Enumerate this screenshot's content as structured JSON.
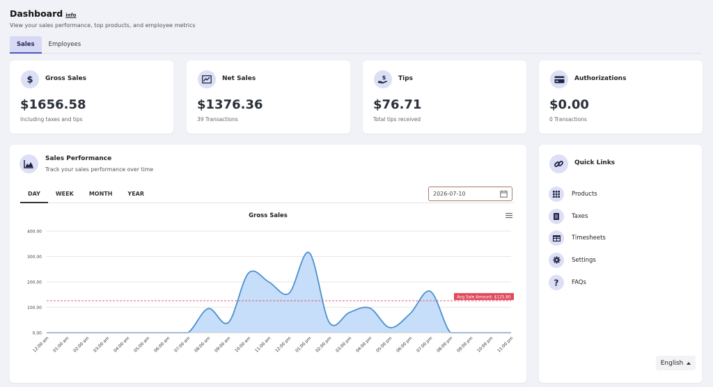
{
  "header": {
    "title": "Dashboard",
    "info": "info",
    "subtitle": "View your sales performance, top products, and employee metrics"
  },
  "tabs": [
    {
      "label": "Sales",
      "active": true
    },
    {
      "label": "Employees",
      "active": false
    }
  ],
  "stats": [
    {
      "icon": "dollar-icon",
      "label": "Gross Sales",
      "value": "$1656.58",
      "sub": "Including taxes and tips"
    },
    {
      "icon": "trending-up-icon",
      "label": "Net Sales",
      "value": "$1376.36",
      "sub": "39 Transactions"
    },
    {
      "icon": "hand-dollar-icon",
      "label": "Tips",
      "value": "$76.71",
      "sub": "Total tips received"
    },
    {
      "icon": "credit-card-icon",
      "label": "Authorizations",
      "value": "$0.00",
      "sub": "0 Transactions"
    }
  ],
  "performance": {
    "title": "Sales Performance",
    "subtitle": "Track your sales performance over time",
    "periods": [
      "DAY",
      "WEEK",
      "MONTH",
      "YEAR"
    ],
    "active_period": "DAY",
    "date": "2026-07-10"
  },
  "chart_data": {
    "type": "area",
    "title": "Gross Sales",
    "categories": [
      "12:00 am",
      "01:00 am",
      "02:00 am",
      "03:00 am",
      "04:00 am",
      "05:00 am",
      "06:00 am",
      "07:00 am",
      "08:00 am",
      "09:00 am",
      "10:00 am",
      "11:00 am",
      "12:00 pm",
      "01:00 pm",
      "02:00 pm",
      "03:00 pm",
      "04:00 pm",
      "05:00 pm",
      "06:00 pm",
      "07:00 pm",
      "08:00 pm",
      "09:00 pm",
      "10:00 pm",
      "11:00 pm"
    ],
    "values": [
      0,
      0,
      0,
      0,
      0,
      0,
      0,
      0,
      95,
      40,
      235,
      200,
      155,
      315,
      40,
      80,
      97,
      20,
      75,
      163,
      0,
      0,
      0,
      0
    ],
    "ylim": [
      0,
      400
    ],
    "yticks": [
      "0.00",
      "100.00",
      "200.00",
      "300.00",
      "400.00"
    ],
    "avg_line": {
      "value": 125.8,
      "label": "Avg Sale Amount: $125.80"
    },
    "colors": {
      "line": "#4a8fd0",
      "fill": "#c6defa",
      "avg": "#e04a5c"
    }
  },
  "quick_links": {
    "title": "Quick Links",
    "items": [
      {
        "icon": "grid-icon",
        "label": "Products"
      },
      {
        "icon": "document-icon",
        "label": "Taxes"
      },
      {
        "icon": "table-icon",
        "label": "Timesheets"
      },
      {
        "icon": "gear-icon",
        "label": "Settings"
      },
      {
        "icon": "question-icon",
        "label": "FAQs"
      }
    ]
  },
  "language": {
    "selected": "English"
  }
}
